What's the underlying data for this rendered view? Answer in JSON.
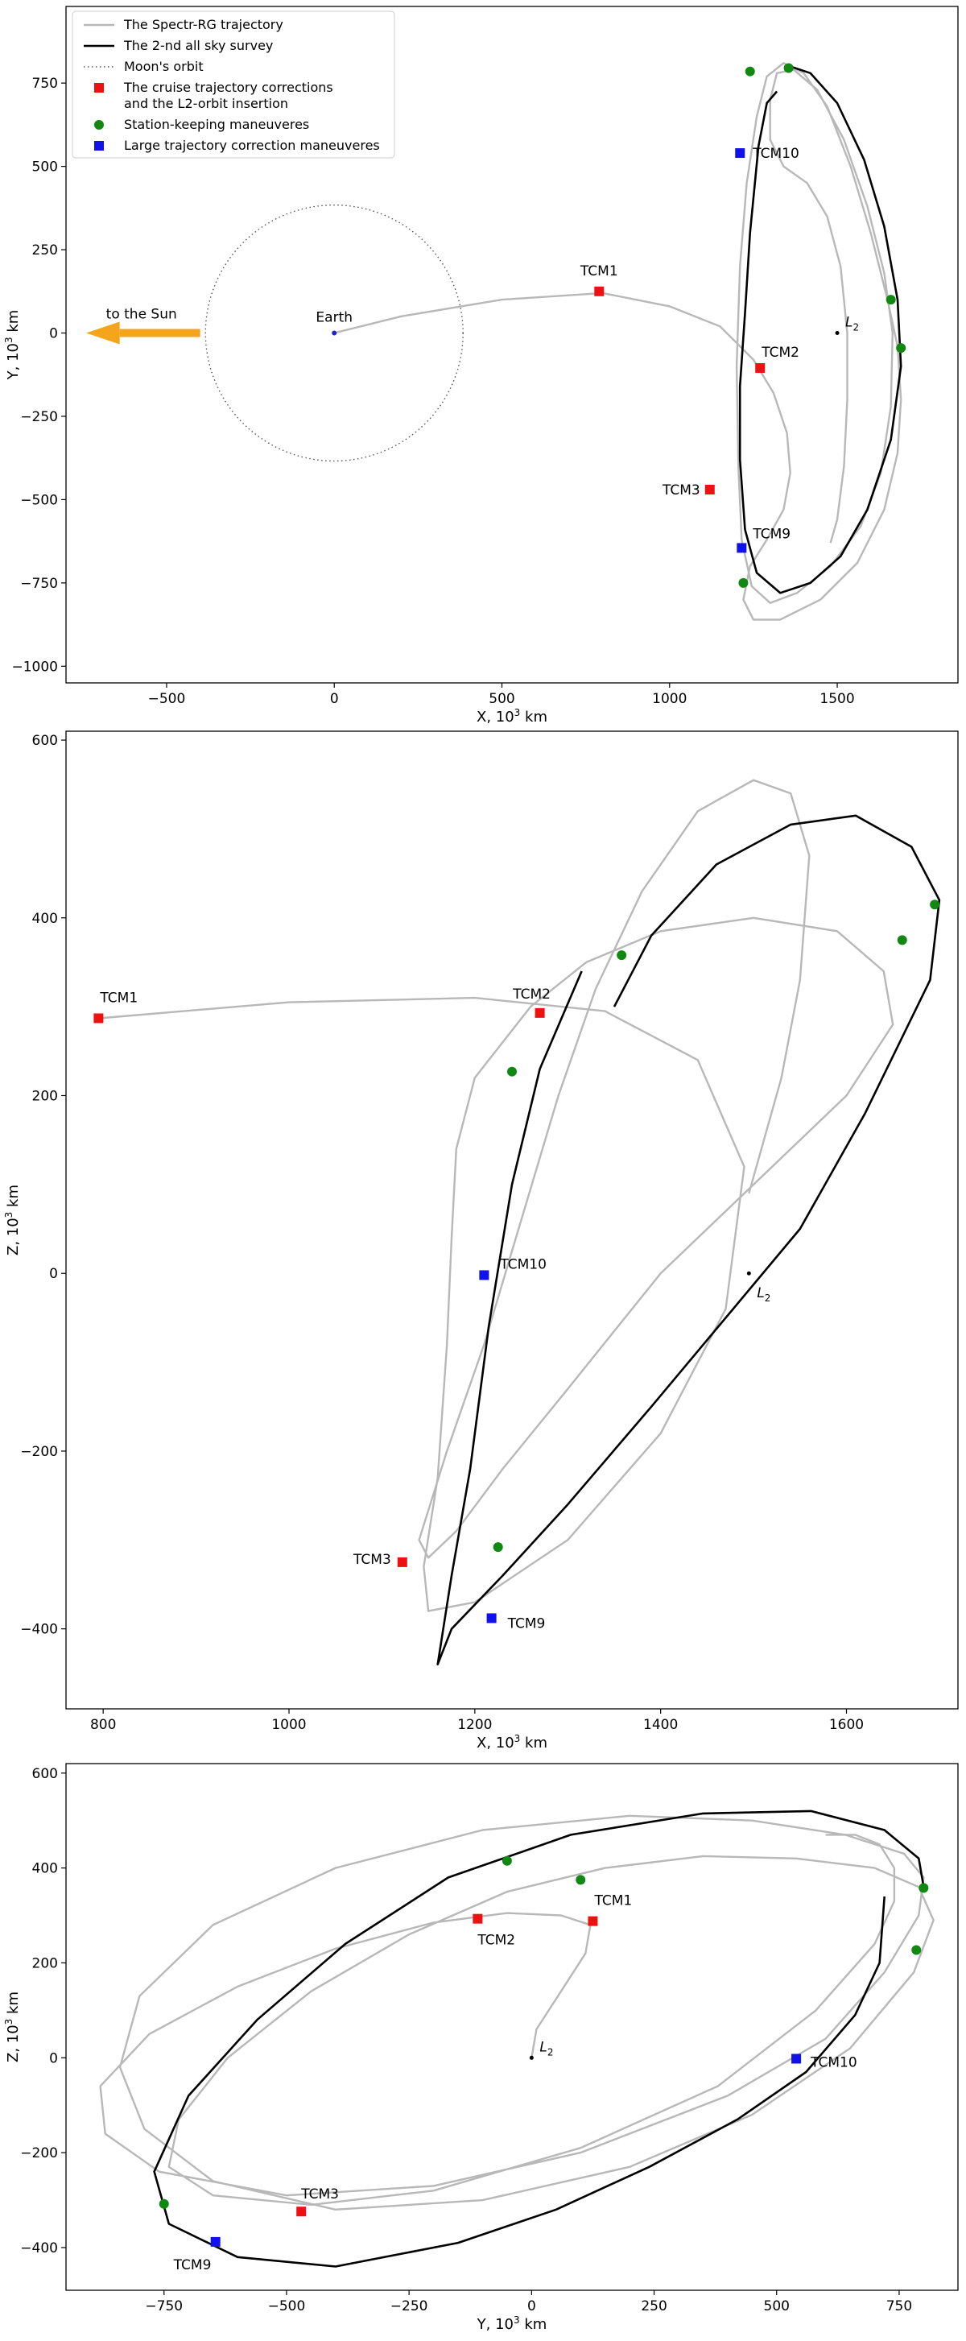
{
  "colors": {
    "trajectory": "#b8b8b8",
    "survey": "#000000",
    "moon_orbit": "#555555",
    "cruise": "#ee1111",
    "station": "#118811",
    "large": "#1111ee",
    "sun_arrow": "#f5a51c",
    "earth": "#2222cc"
  },
  "legend": {
    "items": [
      {
        "label": "The Spectr-RG trajectory",
        "kind": "line-gray"
      },
      {
        "label": "The 2-nd all sky survey",
        "kind": "line-black"
      },
      {
        "label": "Moon's orbit",
        "kind": "line-dotted"
      },
      {
        "label": "The cruise trajectory corrections",
        "label2": "and the L2-orbit insertion",
        "kind": "sq-red"
      },
      {
        "label": "Station-keeping maneuveres",
        "kind": "dot-green"
      },
      {
        "label": "Large trajectory correction maneuveres",
        "kind": "sq-blue"
      }
    ]
  },
  "sun_label": "to the Sun",
  "earth_label": "Earth",
  "l2_label": "L",
  "l2_sub": "2",
  "chart_data": [
    {
      "type": "line",
      "xlabel": "X, 10",
      "xlabel_sup": "3",
      "xlabel_unit": " km",
      "ylabel": "Y, 10",
      "ylabel_sup": "3",
      "ylabel_unit": " km",
      "xlim": [
        -800,
        1860
      ],
      "ylim": [
        -1050,
        980
      ],
      "xticks": [
        -500,
        0,
        500,
        1000,
        1500
      ],
      "yticks": [
        -1000,
        -750,
        -500,
        -250,
        0,
        250,
        500,
        750
      ],
      "trajectory": [
        [
          0,
          0
        ],
        [
          200,
          50
        ],
        [
          500,
          100
        ],
        [
          800,
          120
        ],
        [
          1000,
          80
        ],
        [
          1150,
          20
        ],
        [
          1250,
          -80
        ],
        [
          1310,
          -180
        ],
        [
          1350,
          -300
        ],
        [
          1360,
          -420
        ],
        [
          1340,
          -530
        ],
        [
          1290,
          -620
        ],
        [
          1240,
          -700
        ],
        [
          1220,
          -800
        ],
        [
          1250,
          -860
        ],
        [
          1330,
          -860
        ],
        [
          1450,
          -800
        ],
        [
          1560,
          -690
        ],
        [
          1640,
          -530
        ],
        [
          1680,
          -360
        ],
        [
          1690,
          -200
        ],
        [
          1680,
          -40
        ],
        [
          1650,
          100
        ],
        [
          1600,
          300
        ],
        [
          1540,
          500
        ],
        [
          1470,
          680
        ],
        [
          1400,
          780
        ],
        [
          1340,
          810
        ],
        [
          1290,
          770
        ],
        [
          1260,
          650
        ],
        [
          1230,
          450
        ],
        [
          1210,
          200
        ],
        [
          1200,
          -100
        ],
        [
          1205,
          -400
        ],
        [
          1215,
          -620
        ],
        [
          1245,
          -760
        ],
        [
          1300,
          -810
        ],
        [
          1380,
          -780
        ],
        [
          1480,
          -700
        ],
        [
          1570,
          -580
        ],
        [
          1630,
          -420
        ],
        [
          1660,
          -220
        ],
        [
          1665,
          0
        ],
        [
          1640,
          180
        ],
        [
          1590,
          380
        ],
        [
          1520,
          580
        ],
        [
          1440,
          730
        ],
        [
          1370,
          790
        ],
        [
          1320,
          780
        ],
        [
          1300,
          700
        ],
        [
          1300,
          580
        ],
        [
          1340,
          500
        ],
        [
          1410,
          450
        ],
        [
          1470,
          350
        ],
        [
          1510,
          200
        ],
        [
          1530,
          0
        ],
        [
          1530,
          -200
        ],
        [
          1520,
          -400
        ],
        [
          1500,
          -560
        ],
        [
          1480,
          -630
        ]
      ],
      "survey": [
        [
          1320,
          725
        ],
        [
          1290,
          690
        ],
        [
          1265,
          560
        ],
        [
          1240,
          300
        ],
        [
          1225,
          60
        ],
        [
          1210,
          -160
        ],
        [
          1210,
          -380
        ],
        [
          1225,
          -590
        ],
        [
          1260,
          -720
        ],
        [
          1330,
          -780
        ],
        [
          1420,
          -750
        ],
        [
          1510,
          -670
        ],
        [
          1590,
          -530
        ],
        [
          1660,
          -320
        ],
        [
          1690,
          -100
        ],
        [
          1680,
          100
        ],
        [
          1640,
          320
        ],
        [
          1580,
          520
        ],
        [
          1500,
          690
        ],
        [
          1420,
          780
        ],
        [
          1360,
          800
        ]
      ],
      "moon_orbit": {
        "cx": 0,
        "cy": 0,
        "r": 384
      },
      "earth": {
        "x": 0,
        "y": 0
      },
      "l2": {
        "x": 1500,
        "y": 0
      },
      "points": [
        {
          "kind": "sq-red",
          "label": "TCM1",
          "x": 790,
          "y": 125
        },
        {
          "kind": "sq-red",
          "label": "TCM2",
          "x": 1270,
          "y": -105
        },
        {
          "kind": "sq-red",
          "label": "TCM3",
          "x": 1120,
          "y": -470
        },
        {
          "kind": "sq-blue",
          "label": "TCM9",
          "x": 1215,
          "y": -645
        },
        {
          "kind": "sq-blue",
          "label": "TCM10",
          "x": 1210,
          "y": 540
        },
        {
          "kind": "dot-green",
          "label": "",
          "x": 1240,
          "y": 785
        },
        {
          "kind": "dot-green",
          "label": "",
          "x": 1355,
          "y": 795
        },
        {
          "kind": "dot-green",
          "label": "",
          "x": 1660,
          "y": 100
        },
        {
          "kind": "dot-green",
          "label": "",
          "x": 1690,
          "y": -45
        },
        {
          "kind": "dot-green",
          "label": "",
          "x": 1220,
          "y": -750
        }
      ]
    },
    {
      "type": "line",
      "xlabel": "X, 10",
      "xlabel_sup": "3",
      "xlabel_unit": " km",
      "ylabel": "Z, 10",
      "ylabel_sup": "3",
      "ylabel_unit": " km",
      "xlim": [
        760,
        1720
      ],
      "ylim": [
        -490,
        610
      ],
      "xticks": [
        800,
        1000,
        1200,
        1400,
        1600
      ],
      "yticks": [
        -400,
        -200,
        0,
        200,
        400,
        600
      ],
      "trajectory": [
        [
          795,
          287
        ],
        [
          1000,
          305
        ],
        [
          1200,
          310
        ],
        [
          1340,
          295
        ],
        [
          1440,
          240
        ],
        [
          1490,
          120
        ],
        [
          1470,
          -40
        ],
        [
          1400,
          -180
        ],
        [
          1300,
          -300
        ],
        [
          1200,
          -370
        ],
        [
          1150,
          -380
        ],
        [
          1145,
          -330
        ],
        [
          1160,
          -230
        ],
        [
          1170,
          -80
        ],
        [
          1175,
          40
        ],
        [
          1180,
          140
        ],
        [
          1200,
          220
        ],
        [
          1260,
          300
        ],
        [
          1320,
          350
        ],
        [
          1400,
          385
        ],
        [
          1500,
          400
        ],
        [
          1590,
          385
        ],
        [
          1640,
          340
        ],
        [
          1650,
          280
        ],
        [
          1600,
          200
        ],
        [
          1500,
          100
        ],
        [
          1400,
          0
        ],
        [
          1300,
          -130
        ],
        [
          1230,
          -220
        ],
        [
          1180,
          -290
        ],
        [
          1150,
          -320
        ],
        [
          1140,
          -300
        ],
        [
          1170,
          -200
        ],
        [
          1210,
          -80
        ],
        [
          1250,
          60
        ],
        [
          1290,
          200
        ],
        [
          1330,
          320
        ],
        [
          1380,
          430
        ],
        [
          1440,
          520
        ],
        [
          1500,
          555
        ],
        [
          1540,
          540
        ],
        [
          1560,
          470
        ],
        [
          1550,
          330
        ],
        [
          1530,
          220
        ],
        [
          1495,
          90
        ]
      ],
      "survey": [
        [
          1315,
          340
        ],
        [
          1270,
          230
        ],
        [
          1240,
          100
        ],
        [
          1215,
          -60
        ],
        [
          1195,
          -220
        ],
        [
          1175,
          -340
        ],
        [
          1160,
          -440
        ],
        [
          1175,
          -400
        ],
        [
          1230,
          -340
        ],
        [
          1300,
          -260
        ],
        [
          1390,
          -150
        ],
        [
          1470,
          -50
        ],
        [
          1550,
          50
        ],
        [
          1620,
          180
        ],
        [
          1690,
          330
        ],
        [
          1700,
          420
        ],
        [
          1670,
          480
        ],
        [
          1610,
          515
        ],
        [
          1540,
          505
        ],
        [
          1460,
          460
        ],
        [
          1390,
          380
        ],
        [
          1350,
          300
        ]
      ],
      "l2": {
        "x": 1495,
        "y": 0
      },
      "points": [
        {
          "kind": "sq-red",
          "label": "TCM1",
          "x": 795,
          "y": 287
        },
        {
          "kind": "sq-red",
          "label": "TCM2",
          "x": 1270,
          "y": 293
        },
        {
          "kind": "sq-red",
          "label": "TCM3",
          "x": 1122,
          "y": -325
        },
        {
          "kind": "sq-blue",
          "label": "TCM9",
          "x": 1218,
          "y": -388
        },
        {
          "kind": "sq-blue",
          "label": "TCM10",
          "x": 1210,
          "y": -2
        },
        {
          "kind": "dot-green",
          "label": "",
          "x": 1240,
          "y": 227
        },
        {
          "kind": "dot-green",
          "label": "",
          "x": 1358,
          "y": 358
        },
        {
          "kind": "dot-green",
          "label": "",
          "x": 1660,
          "y": 375
        },
        {
          "kind": "dot-green",
          "label": "",
          "x": 1695,
          "y": 415
        },
        {
          "kind": "dot-green",
          "label": "",
          "x": 1225,
          "y": -308
        }
      ]
    },
    {
      "type": "line",
      "xlabel": "Y, 10",
      "xlabel_sup": "3",
      "xlabel_unit": " km",
      "ylabel": "Z, 10",
      "ylabel_sup": "3",
      "ylabel_unit": " km",
      "xlim": [
        -950,
        870
      ],
      "ylim": [
        -490,
        620
      ],
      "xticks": [
        -750,
        -500,
        -250,
        0,
        250,
        500,
        750
      ],
      "yticks": [
        -400,
        -200,
        0,
        200,
        400,
        600
      ],
      "trajectory": [
        [
          0,
          0
        ],
        [
          10,
          60
        ],
        [
          60,
          140
        ],
        [
          110,
          220
        ],
        [
          120,
          280
        ],
        [
          60,
          300
        ],
        [
          -50,
          305
        ],
        [
          -200,
          285
        ],
        [
          -400,
          230
        ],
        [
          -600,
          150
        ],
        [
          -780,
          50
        ],
        [
          -880,
          -60
        ],
        [
          -870,
          -160
        ],
        [
          -760,
          -240
        ],
        [
          -500,
          -290
        ],
        [
          -200,
          -270
        ],
        [
          100,
          -200
        ],
        [
          400,
          -80
        ],
        [
          600,
          40
        ],
        [
          720,
          180
        ],
        [
          790,
          300
        ],
        [
          800,
          380
        ],
        [
          760,
          430
        ],
        [
          640,
          470
        ],
        [
          450,
          500
        ],
        [
          200,
          510
        ],
        [
          -100,
          480
        ],
        [
          -400,
          400
        ],
        [
          -650,
          280
        ],
        [
          -800,
          130
        ],
        [
          -840,
          -20
        ],
        [
          -790,
          -150
        ],
        [
          -650,
          -260
        ],
        [
          -400,
          -320
        ],
        [
          -100,
          -300
        ],
        [
          200,
          -230
        ],
        [
          450,
          -120
        ],
        [
          650,
          20
        ],
        [
          780,
          180
        ],
        [
          820,
          290
        ],
        [
          790,
          360
        ],
        [
          700,
          400
        ],
        [
          540,
          420
        ],
        [
          350,
          425
        ],
        [
          150,
          400
        ],
        [
          -50,
          350
        ],
        [
          -250,
          260
        ],
        [
          -450,
          140
        ],
        [
          -620,
          0
        ],
        [
          -720,
          -130
        ],
        [
          -740,
          -230
        ],
        [
          -650,
          -290
        ],
        [
          -450,
          -310
        ],
        [
          -200,
          -280
        ],
        [
          100,
          -190
        ],
        [
          380,
          -60
        ],
        [
          580,
          100
        ],
        [
          700,
          240
        ],
        [
          740,
          330
        ],
        [
          740,
          400
        ],
        [
          710,
          450
        ],
        [
          660,
          470
        ],
        [
          600,
          470
        ]
      ],
      "survey": [
        [
          720,
          340
        ],
        [
          710,
          200
        ],
        [
          660,
          90
        ],
        [
          560,
          -30
        ],
        [
          420,
          -130
        ],
        [
          240,
          -230
        ],
        [
          50,
          -320
        ],
        [
          -150,
          -390
        ],
        [
          -400,
          -440
        ],
        [
          -600,
          -420
        ],
        [
          -740,
          -350
        ],
        [
          -770,
          -240
        ],
        [
          -700,
          -80
        ],
        [
          -560,
          80
        ],
        [
          -380,
          240
        ],
        [
          -170,
          380
        ],
        [
          80,
          470
        ],
        [
          350,
          515
        ],
        [
          570,
          520
        ],
        [
          720,
          480
        ],
        [
          790,
          420
        ],
        [
          800,
          360
        ]
      ],
      "l2": {
        "x": 0,
        "y": 0
      },
      "points": [
        {
          "kind": "sq-red",
          "label": "TCM1",
          "x": 125,
          "y": 288
        },
        {
          "kind": "sq-red",
          "label": "TCM2",
          "x": -110,
          "y": 293
        },
        {
          "kind": "sq-red",
          "label": "TCM3",
          "x": -470,
          "y": -324
        },
        {
          "kind": "sq-blue",
          "label": "TCM9",
          "x": -645,
          "y": -388
        },
        {
          "kind": "sq-blue",
          "label": "TCM10",
          "x": 540,
          "y": -2
        },
        {
          "kind": "dot-green",
          "label": "",
          "x": -50,
          "y": 415
        },
        {
          "kind": "dot-green",
          "label": "",
          "x": 100,
          "y": 375
        },
        {
          "kind": "dot-green",
          "label": "",
          "x": 800,
          "y": 358
        },
        {
          "kind": "dot-green",
          "label": "",
          "x": 785,
          "y": 227
        },
        {
          "kind": "dot-green",
          "label": "",
          "x": -750,
          "y": -308
        }
      ]
    }
  ]
}
